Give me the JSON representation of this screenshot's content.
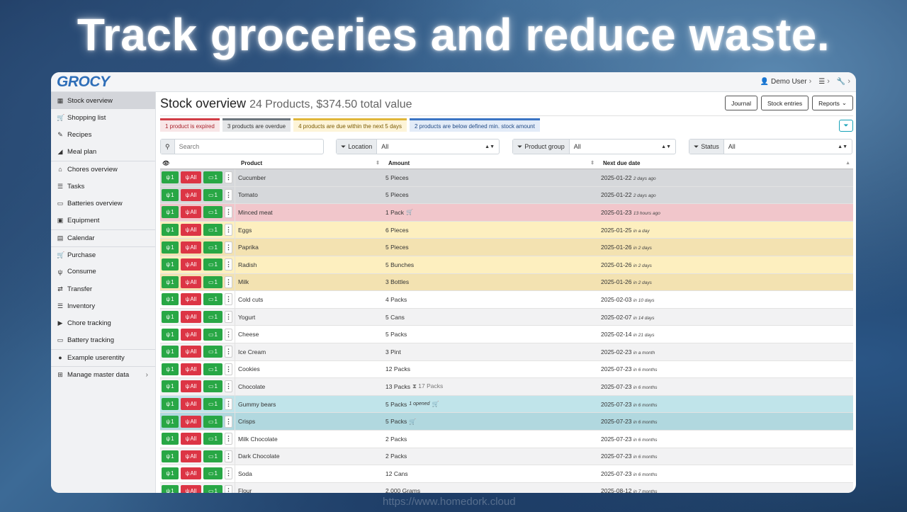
{
  "hero": {
    "title": "Track groceries and reduce waste."
  },
  "watermark": "https://www.homedork.cloud",
  "app": {
    "logo": "GROCY",
    "user": "Demo User",
    "brand_color": "#2e6eb8"
  },
  "sidebar": {
    "items": [
      {
        "label": "Stock overview",
        "icon": "box-icon",
        "glyph": "▦",
        "active": true
      },
      {
        "label": "Shopping list",
        "icon": "cart-icon",
        "glyph": "🛒"
      },
      {
        "label": "Recipes",
        "icon": "book-icon",
        "glyph": "✎"
      },
      {
        "label": "Meal plan",
        "icon": "pen-icon",
        "glyph": "◢"
      },
      {
        "label": "Chores overview",
        "icon": "home-icon",
        "glyph": "⌂",
        "divider": true
      },
      {
        "label": "Tasks",
        "icon": "tasks-icon",
        "glyph": "☰"
      },
      {
        "label": "Batteries overview",
        "icon": "battery-icon",
        "glyph": "▭"
      },
      {
        "label": "Equipment",
        "icon": "toolbox-icon",
        "glyph": "▣"
      },
      {
        "label": "Calendar",
        "icon": "calendar-icon",
        "glyph": "▤",
        "divider": true
      },
      {
        "label": "Purchase",
        "icon": "cart-plus-icon",
        "glyph": "🛒",
        "divider": true
      },
      {
        "label": "Consume",
        "icon": "utensils-icon",
        "glyph": "ψ"
      },
      {
        "label": "Transfer",
        "icon": "transfer-icon",
        "glyph": "⇄"
      },
      {
        "label": "Inventory",
        "icon": "list-icon",
        "glyph": "☰"
      },
      {
        "label": "Chore tracking",
        "icon": "play-icon",
        "glyph": "▶"
      },
      {
        "label": "Battery tracking",
        "icon": "battery-icon",
        "glyph": "▭"
      },
      {
        "label": "Example userentity",
        "icon": "circle-icon",
        "glyph": "●",
        "divider": true
      },
      {
        "label": "Manage master data",
        "icon": "table-icon",
        "glyph": "⊞",
        "divider": true,
        "arrow": "›"
      }
    ]
  },
  "main": {
    "title": "Stock overview",
    "subtitle": "24 Products, $374.50 total value",
    "buttons": {
      "journal": "Journal",
      "stock_entries": "Stock entries",
      "reports": "Reports"
    },
    "status": {
      "expired": "1 product is expired",
      "overdue": "3 products are overdue",
      "due_soon": "4 products are due within the next 5 days",
      "below_min": "2 products are below defined min. stock amount"
    },
    "filters": {
      "search_placeholder": "Search",
      "location_label": "Location",
      "location_value": "All",
      "product_group_label": "Product group",
      "product_group_value": "All",
      "status_label": "Status",
      "status_value": "All"
    },
    "table": {
      "headers": {
        "product": "Product",
        "amount": "Amount",
        "due": "Next due date"
      },
      "action_labels": {
        "consume_one": "1",
        "consume_all": "All",
        "open_one": "1"
      },
      "rows": [
        {
          "product": "Cucumber",
          "amount": "5 Pieces",
          "due": "2025-01-22",
          "rel": "2 days ago",
          "style": "gray"
        },
        {
          "product": "Tomato",
          "amount": "5 Pieces",
          "due": "2025-01-22",
          "rel": "2 days ago",
          "style": "gray"
        },
        {
          "product": "Minced meat",
          "amount": "1 Pack",
          "cart": true,
          "due": "2025-01-23",
          "rel": "13 hours ago",
          "style": "red"
        },
        {
          "product": "Eggs",
          "amount": "6 Pieces",
          "due": "2025-01-25",
          "rel": "in a day",
          "style": "yellow"
        },
        {
          "product": "Paprika",
          "amount": "5 Pieces",
          "due": "2025-01-26",
          "rel": "in 2 days",
          "style": "yellow2"
        },
        {
          "product": "Radish",
          "amount": "5 Bunches",
          "due": "2025-01-26",
          "rel": "in 2 days",
          "style": "yellow"
        },
        {
          "product": "Milk",
          "amount": "3 Bottles",
          "due": "2025-01-26",
          "rel": "in 2 days",
          "style": "yellow2"
        },
        {
          "product": "Cold cuts",
          "amount": "4 Packs",
          "due": "2025-02-03",
          "rel": "in 10 days",
          "style": "white"
        },
        {
          "product": "Yogurt",
          "amount": "5 Cans",
          "due": "2025-02-07",
          "rel": "in 14 days",
          "style": "stripe"
        },
        {
          "product": "Cheese",
          "amount": "5 Packs",
          "due": "2025-02-14",
          "rel": "in 21 days",
          "style": "white"
        },
        {
          "product": "Ice Cream",
          "amount": "3 Pint",
          "due": "2025-02-23",
          "rel": "in a month",
          "style": "stripe"
        },
        {
          "product": "Cookies",
          "amount": "12 Packs",
          "due": "2025-07-23",
          "rel": "in 6 months",
          "style": "white"
        },
        {
          "product": "Chocolate",
          "amount": "13 Packs",
          "agg": "⧗ 17 Packs",
          "due": "2025-07-23",
          "rel": "in 6 months",
          "style": "stripe"
        },
        {
          "product": "Gummy bears",
          "amount": "5 Packs",
          "note": "1 opened",
          "cart": true,
          "due": "2025-07-23",
          "rel": "in 6 months",
          "style": "blue"
        },
        {
          "product": "Crisps",
          "amount": "5 Packs",
          "cart": true,
          "due": "2025-07-23",
          "rel": "in 6 months",
          "style": "blue2"
        },
        {
          "product": "Milk Chocolate",
          "amount": "2 Packs",
          "due": "2025-07-23",
          "rel": "in 6 months",
          "style": "white"
        },
        {
          "product": "Dark Chocolate",
          "amount": "2 Packs",
          "due": "2025-07-23",
          "rel": "in 6 months",
          "style": "stripe"
        },
        {
          "product": "Soda",
          "amount": "12 Cans",
          "due": "2025-07-23",
          "rel": "in 6 months",
          "style": "white"
        },
        {
          "product": "Flour",
          "amount": "2,000 Grams",
          "due": "2025-08-12",
          "rel": "in 7 months",
          "style": "stripe"
        }
      ]
    }
  }
}
